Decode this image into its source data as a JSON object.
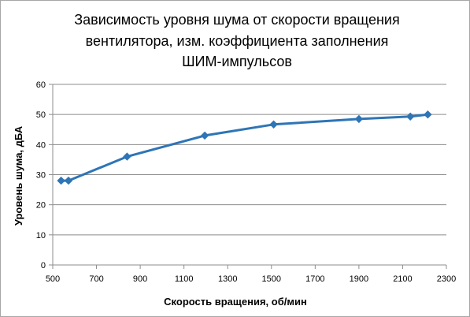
{
  "chart_data": {
    "type": "line",
    "title_lines": [
      "Зависимость уровня шума от скорости вращения",
      "вентилятора,  изм. коэффициента  заполнения",
      "ШИМ-импульсов"
    ],
    "xlabel": "Скорость вращения, об/мин",
    "ylabel": "Уровень шума, дБА",
    "xlim": [
      500,
      2300
    ],
    "ylim": [
      0,
      60
    ],
    "x_ticks": [
      500,
      700,
      900,
      1100,
      1300,
      1500,
      1700,
      1900,
      2100,
      2300
    ],
    "y_ticks": [
      0,
      10,
      20,
      30,
      40,
      50,
      60
    ],
    "grid": "horizontal",
    "legend": "none",
    "series": [
      {
        "color": "#2e75b6",
        "marker": "diamond",
        "x": [
          538,
          572,
          840,
          1195,
          1510,
          1900,
          2135,
          2215
        ],
        "y": [
          28,
          28,
          36,
          43,
          46.7,
          48.5,
          49.3,
          50
        ]
      }
    ]
  }
}
